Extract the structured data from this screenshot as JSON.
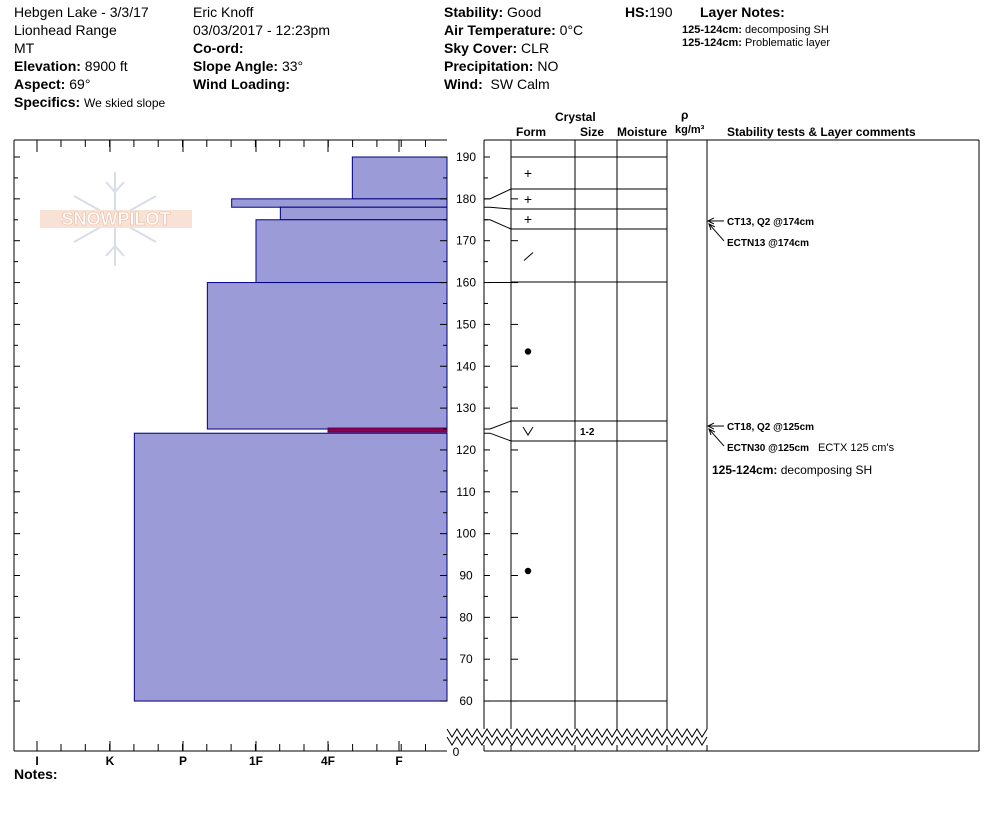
{
  "header": {
    "col1": {
      "location": "Hebgen Lake - 3/3/17",
      "range": "Lionhead Range",
      "state": "MT",
      "elevation_label": "Elevation:",
      "elevation_value": "8900 ft",
      "aspect_label": "Aspect:",
      "aspect_value": "69°",
      "specifics_label": "Specifics:",
      "specifics_value": "We skied slope"
    },
    "col2": {
      "observer": "Eric Knoff",
      "datetime": "03/03/2017 - 12:23pm",
      "coord_label": "Co-ord:",
      "slope_label": "Slope Angle:",
      "slope_value": "33°",
      "wind_loading_label": "Wind Loading:"
    },
    "col3": {
      "stability_label": "Stability:",
      "stability_value": "Good",
      "air_temp_label": "Air Temperature:",
      "air_temp_value": "0°C",
      "sky_label": "Sky Cover:",
      "sky_value": "CLR",
      "precip_label": "Precipitation:",
      "precip_value": "NO",
      "wind_label": "Wind:",
      "wind_value": "SW Calm"
    },
    "hs_label": "HS:",
    "hs_value": "190",
    "layer_notes_label": "Layer Notes:",
    "layer_notes": [
      {
        "range": "125-124cm:",
        "text": "decomposing SH"
      },
      {
        "range": "125-124cm:",
        "text": "Problematic layer"
      }
    ]
  },
  "logo_text": "SNOWPILOT",
  "table_headers": {
    "crystal": "Crystal",
    "form": "Form",
    "size": "Size",
    "moisture": "Moisture",
    "rho": "ρ",
    "density_unit": "kg/m³",
    "comments": "Stability tests & Layer comments"
  },
  "hardness_axis": {
    "labels": [
      "I",
      "K",
      "P",
      "1F",
      "4F",
      "F"
    ]
  },
  "notes_label": "Notes:",
  "colors": {
    "layer_fill": "#9b9bd7",
    "layer_stroke": "#000080",
    "weak_layer": "#8b0046"
  },
  "chart_data": {
    "type": "snow-profile",
    "depth_axis": {
      "label_values": [
        190,
        180,
        170,
        160,
        150,
        140,
        130,
        120,
        110,
        100,
        90,
        80,
        70,
        60,
        0
      ],
      "range": [
        60,
        190
      ],
      "zero_label": "0",
      "axis_break": true
    },
    "hardness_scale": [
      "I",
      "K",
      "P",
      "1F",
      "4F",
      "F"
    ],
    "layers": [
      {
        "top": 190,
        "bottom": 180,
        "hardness": "4F+"
      },
      {
        "top": 180,
        "bottom": 178,
        "hardness": "1F-"
      },
      {
        "top": 178,
        "bottom": 175,
        "hardness": "1F+"
      },
      {
        "top": 175,
        "bottom": 160,
        "hardness": "1F"
      },
      {
        "top": 160,
        "bottom": 125,
        "hardness": "P+"
      },
      {
        "top": 125,
        "bottom": 124,
        "hardness": "4F",
        "weak": true
      },
      {
        "top": 124,
        "bottom": 60,
        "hardness": "K+"
      }
    ],
    "grain_rows": [
      {
        "top": 190,
        "bottom": 182,
        "symbol": "+"
      },
      {
        "top": 182,
        "bottom": 177,
        "symbol": "+"
      },
      {
        "top": 177,
        "bottom": 173,
        "symbol": "+"
      },
      {
        "top": 173,
        "bottom": 160,
        "symbol": "/"
      },
      {
        "top": 160,
        "bottom": 127,
        "symbol": "•"
      },
      {
        "top": 127,
        "bottom": 122,
        "symbol": "V",
        "size": "1-2"
      },
      {
        "top": 122,
        "bottom": 60,
        "symbol": "•"
      }
    ],
    "layer_boundaries": [
      180,
      178,
      175,
      125,
      124
    ],
    "stability_tests": [
      {
        "depth": 174,
        "lines": [
          "CT13, Q2 @174cm",
          "ECTN13 @174cm"
        ]
      },
      {
        "depth": 125,
        "lines": [
          "CT18, Q2 @125cm",
          "ECTN30 @125cm"
        ],
        "extra": "ECTX 125 cm's"
      }
    ],
    "comment": {
      "range": "125-124cm:",
      "text": "decomposing SH"
    }
  }
}
